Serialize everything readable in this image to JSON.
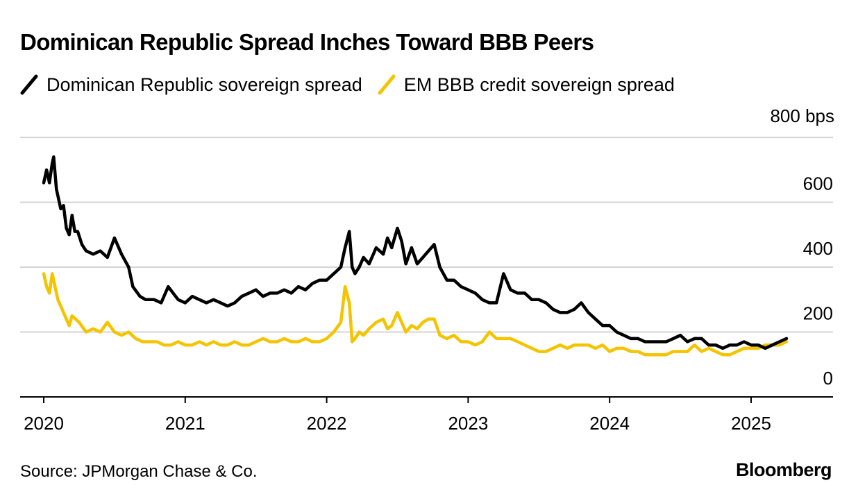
{
  "title": "Dominican Republic Spread Inches Toward BBB Peers",
  "legend": [
    {
      "label": "Dominican Republic sovereign spread",
      "color": "#000000"
    },
    {
      "label": "EM BBB credit sovereign spread",
      "color": "#f5c400"
    }
  ],
  "unit_label": "800 bps",
  "source": "Source: JPMorgan Chase & Co.",
  "brand": "Bloomberg",
  "chart_data": {
    "type": "line",
    "title": "Dominican Republic Spread Inches Toward BBB Peers",
    "xlabel": "",
    "ylabel": "bps",
    "ylim": [
      0,
      800
    ],
    "yticks": [
      0,
      200,
      400,
      600
    ],
    "ytick_labels": [
      "0",
      "200",
      "400",
      "600"
    ],
    "xlim": [
      2020.0,
      2025.8
    ],
    "xticks": [
      2020,
      2021,
      2022,
      2023,
      2024,
      2025
    ],
    "xtick_labels": [
      "2020",
      "2021",
      "2022",
      "2023",
      "2024",
      "2025"
    ],
    "grid": true,
    "series": [
      {
        "name": "Dominican Republic sovereign spread",
        "color": "#000000",
        "x": [
          2020.0,
          2020.02,
          2020.04,
          2020.06,
          2020.07,
          2020.09,
          2020.1,
          2020.12,
          2020.14,
          2020.16,
          2020.18,
          2020.2,
          2020.22,
          2020.24,
          2020.27,
          2020.3,
          2020.35,
          2020.4,
          2020.45,
          2020.5,
          2020.55,
          2020.6,
          2020.63,
          2020.68,
          2020.72,
          2020.78,
          2020.83,
          2020.88,
          2020.95,
          2021.0,
          2021.05,
          2021.1,
          2021.15,
          2021.2,
          2021.25,
          2021.3,
          2021.35,
          2021.4,
          2021.45,
          2021.5,
          2021.55,
          2021.6,
          2021.65,
          2021.7,
          2021.75,
          2021.8,
          2021.85,
          2021.9,
          2021.95,
          2022.0,
          2022.05,
          2022.1,
          2022.13,
          2022.16,
          2022.18,
          2022.2,
          2022.23,
          2022.26,
          2022.3,
          2022.35,
          2022.4,
          2022.43,
          2022.46,
          2022.5,
          2022.53,
          2022.56,
          2022.6,
          2022.64,
          2022.68,
          2022.72,
          2022.76,
          2022.8,
          2022.85,
          2022.9,
          2022.95,
          2023.0,
          2023.05,
          2023.1,
          2023.15,
          2023.2,
          2023.25,
          2023.3,
          2023.35,
          2023.4,
          2023.45,
          2023.5,
          2023.55,
          2023.6,
          2023.65,
          2023.7,
          2023.75,
          2023.8,
          2023.85,
          2023.9,
          2023.95,
          2024.0,
          2024.05,
          2024.1,
          2024.15,
          2024.2,
          2024.25,
          2024.3,
          2024.35,
          2024.4,
          2024.45,
          2024.5,
          2024.55,
          2024.6,
          2024.65,
          2024.7,
          2024.75,
          2024.8,
          2024.85,
          2024.9,
          2024.95,
          2025.0,
          2025.05,
          2025.1,
          2025.15,
          2025.2,
          2025.25
        ],
        "values": [
          660,
          700,
          660,
          720,
          740,
          640,
          620,
          580,
          590,
          520,
          500,
          560,
          510,
          510,
          470,
          450,
          440,
          450,
          430,
          490,
          440,
          400,
          340,
          310,
          300,
          300,
          290,
          340,
          300,
          290,
          310,
          300,
          290,
          300,
          290,
          280,
          290,
          310,
          320,
          330,
          310,
          320,
          320,
          330,
          320,
          340,
          330,
          350,
          360,
          360,
          380,
          400,
          460,
          510,
          400,
          380,
          400,
          430,
          410,
          460,
          440,
          490,
          460,
          520,
          480,
          410,
          460,
          410,
          430,
          450,
          470,
          400,
          360,
          360,
          340,
          330,
          320,
          300,
          290,
          290,
          380,
          330,
          320,
          320,
          300,
          300,
          290,
          270,
          260,
          260,
          270,
          290,
          260,
          240,
          220,
          220,
          200,
          190,
          180,
          180,
          170,
          170,
          170,
          170,
          180,
          190,
          170,
          180,
          180,
          160,
          160,
          150,
          160,
          160,
          170,
          160,
          160,
          150,
          160,
          170,
          180
        ]
      },
      {
        "name": "EM BBB credit sovereign spread",
        "color": "#f5c400",
        "x": [
          2020.0,
          2020.02,
          2020.04,
          2020.06,
          2020.08,
          2020.1,
          2020.12,
          2020.14,
          2020.16,
          2020.18,
          2020.2,
          2020.25,
          2020.3,
          2020.35,
          2020.4,
          2020.45,
          2020.5,
          2020.55,
          2020.6,
          2020.65,
          2020.7,
          2020.75,
          2020.8,
          2020.85,
          2020.9,
          2020.95,
          2021.0,
          2021.05,
          2021.1,
          2021.15,
          2021.2,
          2021.25,
          2021.3,
          2021.35,
          2021.4,
          2021.45,
          2021.5,
          2021.55,
          2021.6,
          2021.65,
          2021.7,
          2021.75,
          2021.8,
          2021.85,
          2021.9,
          2021.95,
          2022.0,
          2022.05,
          2022.1,
          2022.13,
          2022.16,
          2022.18,
          2022.2,
          2022.23,
          2022.26,
          2022.3,
          2022.35,
          2022.4,
          2022.43,
          2022.46,
          2022.5,
          2022.53,
          2022.56,
          2022.6,
          2022.64,
          2022.68,
          2022.72,
          2022.76,
          2022.8,
          2022.85,
          2022.9,
          2022.95,
          2023.0,
          2023.05,
          2023.1,
          2023.15,
          2023.2,
          2023.25,
          2023.3,
          2023.35,
          2023.4,
          2023.45,
          2023.5,
          2023.55,
          2023.6,
          2023.65,
          2023.7,
          2023.75,
          2023.8,
          2023.85,
          2023.9,
          2023.95,
          2024.0,
          2024.05,
          2024.1,
          2024.15,
          2024.2,
          2024.25,
          2024.3,
          2024.35,
          2024.4,
          2024.45,
          2024.5,
          2024.55,
          2024.6,
          2024.65,
          2024.7,
          2024.75,
          2024.8,
          2024.85,
          2024.9,
          2024.95,
          2025.0,
          2025.05,
          2025.1,
          2025.15,
          2025.2,
          2025.25
        ],
        "values": [
          380,
          340,
          320,
          380,
          340,
          300,
          280,
          260,
          240,
          220,
          250,
          230,
          200,
          210,
          200,
          230,
          200,
          190,
          200,
          180,
          170,
          170,
          170,
          160,
          160,
          170,
          160,
          160,
          170,
          160,
          170,
          160,
          160,
          170,
          160,
          160,
          170,
          180,
          170,
          170,
          180,
          170,
          170,
          180,
          170,
          170,
          180,
          200,
          230,
          340,
          290,
          170,
          180,
          200,
          190,
          210,
          230,
          240,
          210,
          220,
          260,
          230,
          200,
          220,
          210,
          230,
          240,
          240,
          190,
          180,
          190,
          170,
          170,
          160,
          170,
          200,
          180,
          180,
          180,
          170,
          160,
          150,
          140,
          140,
          150,
          160,
          150,
          160,
          160,
          160,
          150,
          160,
          140,
          150,
          150,
          140,
          140,
          130,
          130,
          130,
          130,
          140,
          140,
          140,
          160,
          140,
          150,
          140,
          130,
          130,
          140,
          150,
          150,
          150,
          160,
          160,
          160,
          170
        ]
      }
    ]
  }
}
